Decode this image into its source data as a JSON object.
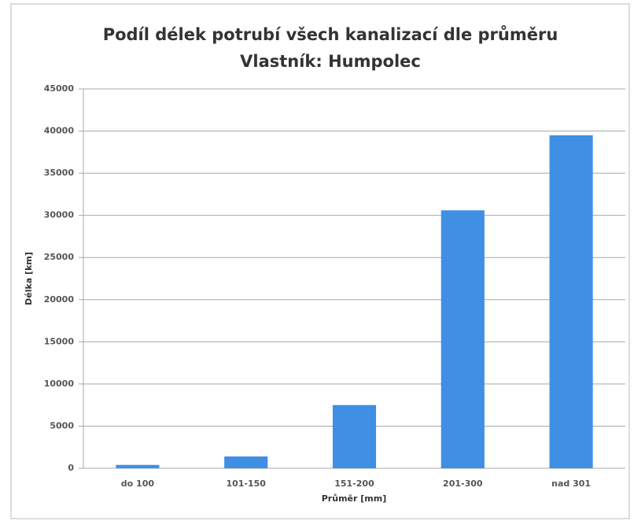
{
  "chart_data": {
    "type": "bar",
    "title": "Podíl délek potrubí všech kanalizací dle průměru",
    "subtitle": "Vlastník: Humpolec",
    "x_label": "Průměr [mm]",
    "y_label": "Délka [km]",
    "categories": [
      "do 100",
      "101-150",
      "151-200",
      "201-300",
      "nad 301"
    ],
    "values": [
      400,
      1400,
      7500,
      30600,
      39500
    ],
    "color": "#3f8fe4",
    "ylim": [
      0,
      45000
    ],
    "yticks": [
      0,
      5000,
      10000,
      15000,
      20000,
      25000,
      30000,
      35000,
      40000,
      45000
    ],
    "grid": true
  }
}
